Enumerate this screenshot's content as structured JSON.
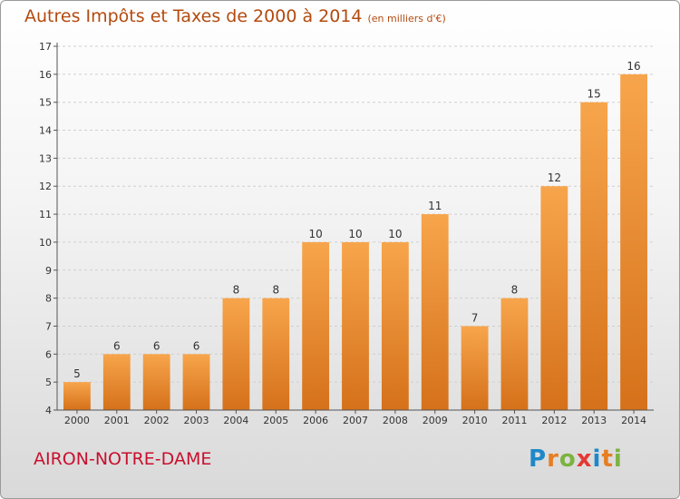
{
  "title": "Autres Impôts et Taxes de 2000 à 2014",
  "unit": "(en milliers d'€)",
  "commune": "AIRON-NOTRE-DAME",
  "logo": {
    "text": "Proxiti",
    "letter_colors": [
      "#1e88c8",
      "#e67e22",
      "#7cb342",
      "#e53935",
      "#1e88c8",
      "#e67e22",
      "#7cb342"
    ]
  },
  "colors": {
    "bar_light": "#f7a54c",
    "bar_dark": "#d5711a",
    "title": "#b34a0e",
    "commune": "#c8102e"
  },
  "chart_data": {
    "type": "bar",
    "categories": [
      "2000",
      "2001",
      "2002",
      "2003",
      "2004",
      "2005",
      "2006",
      "2007",
      "2008",
      "2009",
      "2010",
      "2011",
      "2012",
      "2013",
      "2014"
    ],
    "values": [
      5,
      6,
      6,
      6,
      8,
      8,
      10,
      10,
      10,
      11,
      7,
      8,
      12,
      15,
      16
    ],
    "title": "Autres Impôts et Taxes de 2000 à 2014",
    "ylim": [
      4,
      17
    ],
    "yticks": [
      4,
      5,
      6,
      7,
      8,
      9,
      10,
      11,
      12,
      13,
      14,
      15,
      16,
      17
    ],
    "grid": true,
    "data_labels": true
  }
}
